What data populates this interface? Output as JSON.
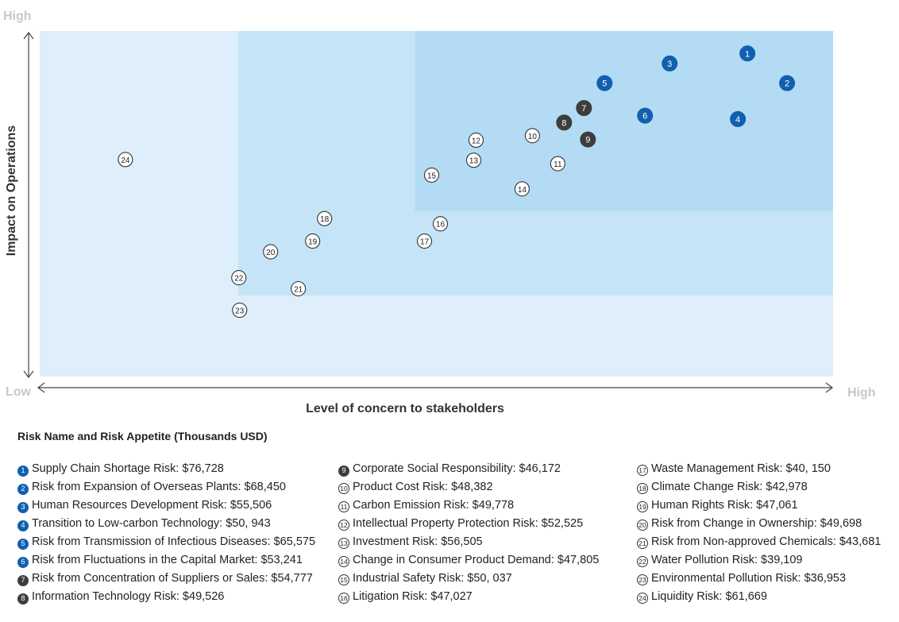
{
  "chart_data": {
    "type": "scatter",
    "xlabel": "Level of concern to stakeholders",
    "ylabel": "Impact on Operations",
    "x_axis_ends": {
      "low": "Low",
      "high": "High"
    },
    "y_axis_ends": {
      "low": "Low",
      "high": "High"
    },
    "xlim": [
      0,
      100
    ],
    "ylim": [
      0,
      100
    ],
    "zones": [
      {
        "name": "low",
        "x": [
          0,
          100
        ],
        "y": [
          0,
          100
        ],
        "color": "#deeefa"
      },
      {
        "name": "medium",
        "x": [
          25,
          100
        ],
        "y": [
          23.5,
          100
        ],
        "color": "#c5e4f7"
      },
      {
        "name": "high",
        "x": [
          47.3,
          100
        ],
        "y": [
          47.9,
          100
        ],
        "color": "#b3dbf3"
      }
    ],
    "styles": {
      "blue": {
        "fill": "#1060b0",
        "stroke": "#1060b0",
        "text": "#ffffff"
      },
      "dark": {
        "fill": "#3d3d3d",
        "stroke": "#3d3d3d",
        "text": "#ffffff"
      },
      "outline": {
        "fill": "#ffffff",
        "stroke": "#333333",
        "text": "#222222"
      }
    },
    "points": [
      {
        "id": "1",
        "x": 89.2,
        "y": 93.5,
        "style": "blue"
      },
      {
        "id": "2",
        "x": 94.2,
        "y": 84.9,
        "style": "blue"
      },
      {
        "id": "3",
        "x": 79.4,
        "y": 90.6,
        "style": "blue"
      },
      {
        "id": "4",
        "x": 88.0,
        "y": 74.5,
        "style": "blue"
      },
      {
        "id": "5",
        "x": 71.2,
        "y": 84.9,
        "style": "blue"
      },
      {
        "id": "6",
        "x": 76.3,
        "y": 75.5,
        "style": "blue"
      },
      {
        "id": "7",
        "x": 68.6,
        "y": 77.7,
        "style": "dark"
      },
      {
        "id": "8",
        "x": 66.1,
        "y": 73.5,
        "style": "dark"
      },
      {
        "id": "9",
        "x": 69.1,
        "y": 68.6,
        "style": "dark"
      },
      {
        "id": "10",
        "x": 62.1,
        "y": 69.7,
        "style": "outline"
      },
      {
        "id": "11",
        "x": 65.3,
        "y": 61.6,
        "style": "outline"
      },
      {
        "id": "12",
        "x": 55.0,
        "y": 68.4,
        "style": "outline"
      },
      {
        "id": "13",
        "x": 54.7,
        "y": 62.6,
        "style": "outline"
      },
      {
        "id": "14",
        "x": 60.8,
        "y": 54.3,
        "style": "outline"
      },
      {
        "id": "15",
        "x": 49.4,
        "y": 58.3,
        "style": "outline"
      },
      {
        "id": "16",
        "x": 50.5,
        "y": 44.2,
        "style": "outline"
      },
      {
        "id": "17",
        "x": 48.5,
        "y": 39.2,
        "style": "outline"
      },
      {
        "id": "18",
        "x": 35.9,
        "y": 45.7,
        "style": "outline"
      },
      {
        "id": "19",
        "x": 34.4,
        "y": 39.2,
        "style": "outline"
      },
      {
        "id": "20",
        "x": 29.1,
        "y": 36.1,
        "style": "outline"
      },
      {
        "id": "21",
        "x": 32.6,
        "y": 25.4,
        "style": "outline"
      },
      {
        "id": "22",
        "x": 25.1,
        "y": 28.6,
        "style": "outline"
      },
      {
        "id": "23",
        "x": 25.2,
        "y": 19.2,
        "style": "outline"
      },
      {
        "id": "24",
        "x": 10.8,
        "y": 62.8,
        "style": "outline"
      }
    ]
  },
  "legend": {
    "title": "Risk Name and Risk Appetite (Thousands USD)",
    "columns": [
      [
        {
          "badge": "1",
          "style": "blue",
          "text": "Supply Chain Shortage Risk: $76,728"
        },
        {
          "badge": "2",
          "style": "blue",
          "text": "Risk from Expansion of Overseas Plants: $68,450"
        },
        {
          "badge": "3",
          "style": "blue",
          "text": "Human Resources Development Risk: $55,506"
        },
        {
          "badge": "4",
          "style": "blue",
          "text": "Transition to Low-carbon Technology: $50, 943"
        },
        {
          "badge": "5",
          "style": "blue",
          "text": "Risk from Transmission of Infectious Diseases: $65,575"
        },
        {
          "badge": "6",
          "style": "blue",
          "text": "Risk from Fluctuations in the Capital Market: $53,241"
        },
        {
          "badge": "7",
          "style": "dark",
          "text": "Risk from Concentration of Suppliers or Sales: $54,777"
        },
        {
          "badge": "8",
          "style": "dark",
          "text": "Information Technology Risk: $49,526"
        }
      ],
      [
        {
          "badge": "9",
          "style": "dark",
          "text": "Corporate Social Responsibility: $46,172"
        },
        {
          "badge": "10",
          "style": "outline",
          "text": "Product Cost Risk: $48,382"
        },
        {
          "badge": "11",
          "style": "outline",
          "text": "Carbon Emission Risk: $49,778"
        },
        {
          "badge": "12",
          "style": "outline",
          "text": "Intellectual Property Protection Risk: $52,525"
        },
        {
          "badge": "13",
          "style": "outline",
          "text": "Investment Risk: $56,505"
        },
        {
          "badge": "14",
          "style": "outline",
          "text": "Change in Consumer Product Demand: $47,805"
        },
        {
          "badge": "15",
          "style": "outline",
          "text": "Industrial Safety Risk: $50, 037"
        },
        {
          "badge": "16",
          "style": "outline",
          "text": "Litigation Risk: $47,027"
        }
      ],
      [
        {
          "badge": "17",
          "style": "outline",
          "text": "Waste Management Risk: $40, 150"
        },
        {
          "badge": "18",
          "style": "outline",
          "text": "Climate Change Risk: $42,978"
        },
        {
          "badge": "19",
          "style": "outline",
          "text": "Human Rights Risk: $47,061"
        },
        {
          "badge": "20",
          "style": "outline",
          "text": "Risk from Change in Ownership: $49,698"
        },
        {
          "badge": "21",
          "style": "outline",
          "text": "Risk from Non-approved Chemicals: $43,681"
        },
        {
          "badge": "22",
          "style": "outline",
          "text": "Water Pollution Risk: $39,109"
        },
        {
          "badge": "23",
          "style": "outline",
          "text": "Environmental Pollution Risk: $36,953"
        },
        {
          "badge": "24",
          "style": "outline",
          "text": "Liquidity Risk: $61,669"
        }
      ]
    ]
  }
}
